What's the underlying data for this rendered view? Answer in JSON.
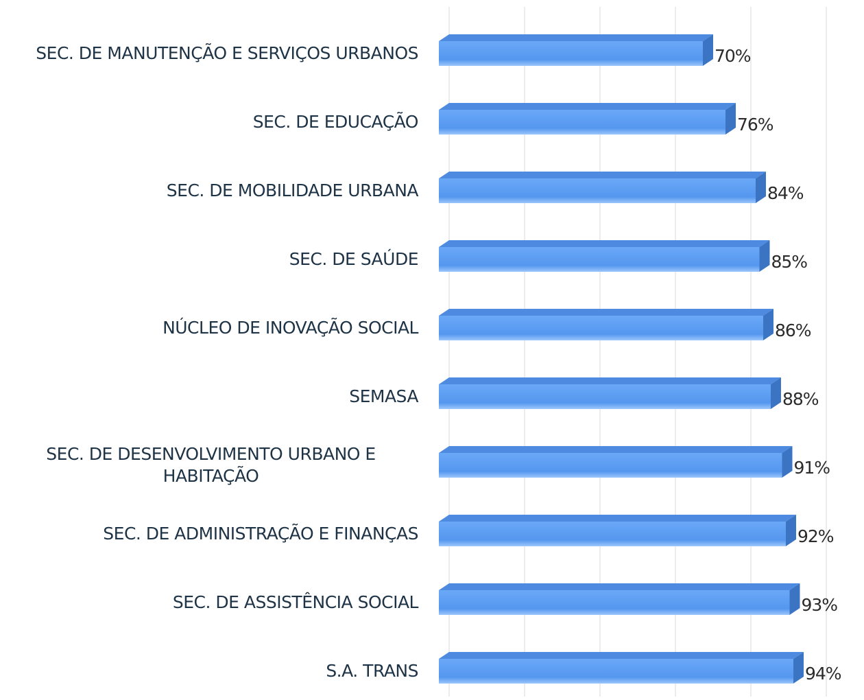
{
  "chart_data": {
    "type": "bar",
    "orientation": "horizontal",
    "categories": [
      "SEC. DE MANUTENÇÃO E SERVIÇOS URBANOS",
      "SEC. DE EDUCAÇÃO",
      "SEC. DE MOBILIDADE URBANA",
      "SEC. DE SAÚDE",
      "NÚCLEO DE INOVAÇÃO SOCIAL",
      "SEMASA",
      "SEC. DE DESENVOLVIMENTO URBANO E HABITAÇÃO",
      "SEC. DE ADMINISTRAÇÃO E FINANÇAS",
      "SEC. DE ASSISTÊNCIA SOCIAL",
      "S.A. TRANS"
    ],
    "values": [
      70,
      76,
      84,
      85,
      86,
      88,
      91,
      92,
      93,
      94
    ],
    "value_labels": [
      "70%",
      "76%",
      "84%",
      "85%",
      "86%",
      "88%",
      "91%",
      "92%",
      "93%",
      "94%"
    ],
    "color": "#5a9cf2",
    "xlim": [
      0,
      100
    ],
    "xticks": [
      0,
      20,
      40,
      60,
      80,
      100
    ],
    "grid": true
  }
}
